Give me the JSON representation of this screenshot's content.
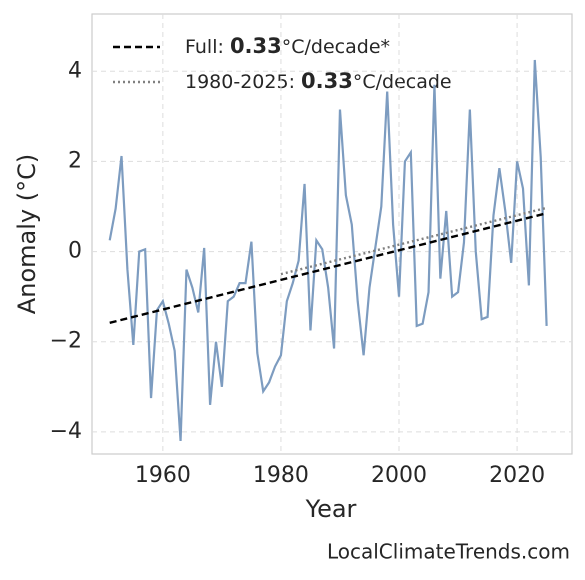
{
  "chart_data": {
    "type": "line",
    "xlabel": "Year",
    "ylabel": "Anomaly (°C)",
    "watermark": "LocalClimateTrends.com",
    "xlim": [
      1948,
      2029.3
    ],
    "ylim": [
      -4.49,
      5.27
    ],
    "xticks": [
      1960,
      1980,
      2000,
      2020
    ],
    "yticks": [
      {
        "value": -4,
        "label": "−4"
      },
      {
        "value": -2,
        "label": "−2"
      },
      0,
      2,
      4
    ],
    "grid": true,
    "legend": "upper left",
    "series": [
      {
        "color": "#7d9cc0",
        "style": "solid",
        "x": [
          1951,
          1952,
          1953,
          1954,
          1955,
          1956,
          1957,
          1958,
          1959,
          1960,
          1961,
          1962,
          1963,
          1964,
          1965,
          1966,
          1967,
          1968,
          1969,
          1970,
          1971,
          1972,
          1973,
          1974,
          1975,
          1976,
          1977,
          1978,
          1979,
          1980,
          1981,
          1982,
          1983,
          1984,
          1985,
          1986,
          1987,
          1988,
          1989,
          1990,
          1991,
          1992,
          1993,
          1994,
          1995,
          1996,
          1997,
          1998,
          1999,
          2000,
          2001,
          2002,
          2003,
          2004,
          2005,
          2006,
          2007,
          2008,
          2009,
          2010,
          2011,
          2012,
          2013,
          2014,
          2015,
          2016,
          2017,
          2018,
          2019,
          2020,
          2021,
          2022,
          2023,
          2024,
          2025
        ],
        "values": [
          0.25,
          0.95,
          2.12,
          -0.4,
          -2.07,
          0.0,
          0.05,
          -3.25,
          -1.3,
          -1.1,
          -1.6,
          -2.2,
          -4.2,
          -0.4,
          -0.8,
          -1.35,
          0.08,
          -3.4,
          -2.0,
          -3.0,
          -1.1,
          -1.0,
          -0.7,
          -0.7,
          0.22,
          -2.25,
          -3.1,
          -2.9,
          -2.55,
          -2.3,
          -1.1,
          -0.7,
          -0.2,
          1.5,
          -1.75,
          0.25,
          0.05,
          -0.8,
          -2.15,
          3.15,
          1.25,
          0.6,
          -1.1,
          -2.3,
          -0.8,
          0.1,
          1.0,
          3.55,
          0.6,
          -1.0,
          2.0,
          2.2,
          -1.65,
          -1.6,
          -0.9,
          3.7,
          -0.6,
          0.9,
          -1.0,
          -0.9,
          0.2,
          3.15,
          0.0,
          -1.5,
          -1.45,
          0.8,
          1.85,
          0.9,
          -0.25,
          2.0,
          1.4,
          -0.75,
          4.25,
          2.1,
          -1.65
        ]
      },
      {
        "name": [
          "Full: ",
          "0.33",
          "°C/decade*"
        ],
        "color": "#000000",
        "style": "dashed",
        "x": [
          1951,
          2025
        ],
        "values": [
          -1.58,
          0.85
        ]
      },
      {
        "name": [
          "1980-2025: ",
          "0.33",
          "°C/decade"
        ],
        "color": "#808080",
        "style": "dotted",
        "x": [
          1980,
          2025
        ],
        "values": [
          -0.5,
          0.97
        ]
      }
    ]
  }
}
